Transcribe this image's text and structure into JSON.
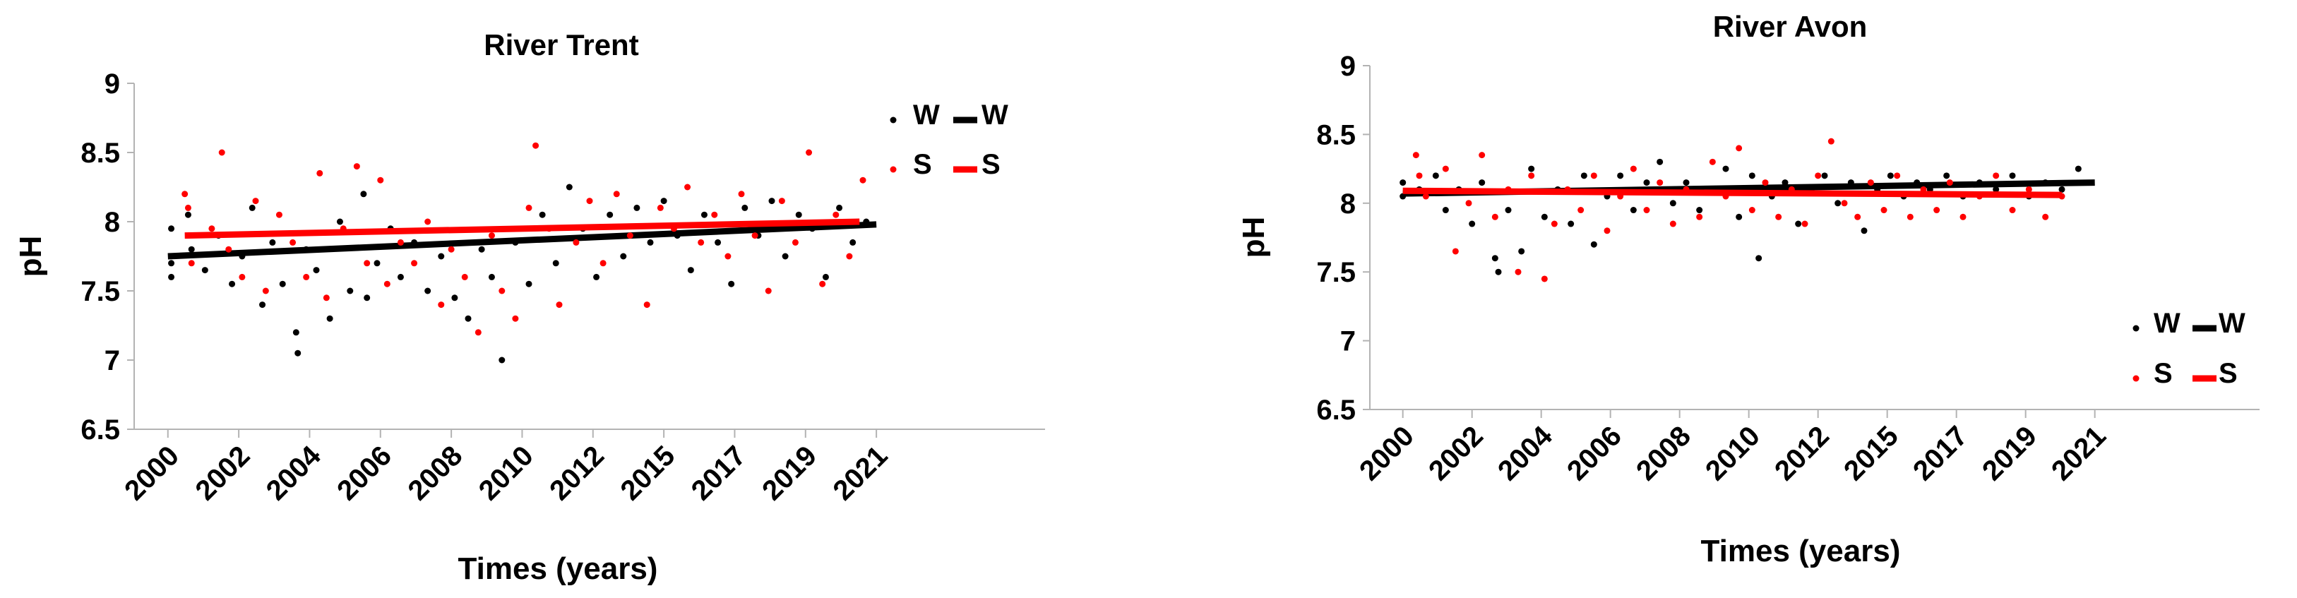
{
  "chart_data": [
    {
      "type": "scatter",
      "title": "River Trent",
      "xlabel": "Times (years)",
      "ylabel": "pH",
      "ylim": [
        6.5,
        9
      ],
      "xlim": [
        1999,
        2026
      ],
      "yticks": [
        "6.5",
        "7",
        "7.5",
        "8",
        "8.5",
        "9"
      ],
      "xticks": [
        "2000",
        "2002",
        "2004",
        "2006",
        "2008",
        "2010",
        "2012",
        "2015",
        "2017",
        "2019",
        "2021"
      ],
      "legend_position": "top-right",
      "series": [
        {
          "name": "W",
          "color": "#000000",
          "kind": "points",
          "points": [
            [
              2000.1,
              7.95
            ],
            [
              2000.1,
              7.7
            ],
            [
              2000.1,
              7.6
            ],
            [
              2000.6,
              8.05
            ],
            [
              2000.7,
              7.8
            ],
            [
              2001.1,
              7.65
            ],
            [
              2001.5,
              7.9
            ],
            [
              2001.9,
              7.55
            ],
            [
              2002.2,
              7.75
            ],
            [
              2002.5,
              8.1
            ],
            [
              2002.8,
              7.4
            ],
            [
              2003.1,
              7.85
            ],
            [
              2003.4,
              7.55
            ],
            [
              2003.8,
              7.2
            ],
            [
              2003.85,
              7.05
            ],
            [
              2004.1,
              7.8
            ],
            [
              2004.4,
              7.65
            ],
            [
              2004.8,
              7.3
            ],
            [
              2005.1,
              8.0
            ],
            [
              2005.4,
              7.5
            ],
            [
              2005.8,
              8.2
            ],
            [
              2005.9,
              7.45
            ],
            [
              2006.2,
              7.7
            ],
            [
              2006.6,
              7.95
            ],
            [
              2006.9,
              7.6
            ],
            [
              2007.3,
              7.85
            ],
            [
              2007.7,
              7.5
            ],
            [
              2008.1,
              7.75
            ],
            [
              2008.5,
              7.45
            ],
            [
              2008.9,
              7.3
            ],
            [
              2009.3,
              7.8
            ],
            [
              2009.6,
              7.6
            ],
            [
              2009.9,
              7.0
            ],
            [
              2010.3,
              7.85
            ],
            [
              2010.7,
              7.55
            ],
            [
              2011.1,
              8.05
            ],
            [
              2011.5,
              7.7
            ],
            [
              2011.9,
              8.25
            ],
            [
              2012.3,
              7.95
            ],
            [
              2012.7,
              7.6
            ],
            [
              2013.1,
              8.05
            ],
            [
              2013.5,
              7.75
            ],
            [
              2013.9,
              8.1
            ],
            [
              2014.3,
              7.85
            ],
            [
              2014.7,
              8.15
            ],
            [
              2015.1,
              7.9
            ],
            [
              2015.5,
              7.65
            ],
            [
              2015.9,
              8.05
            ],
            [
              2016.3,
              7.85
            ],
            [
              2016.7,
              7.55
            ],
            [
              2017.1,
              8.1
            ],
            [
              2017.5,
              7.9
            ],
            [
              2017.9,
              8.15
            ],
            [
              2018.3,
              7.75
            ],
            [
              2018.7,
              8.05
            ],
            [
              2019.1,
              7.95
            ],
            [
              2019.5,
              7.6
            ],
            [
              2019.9,
              8.1
            ],
            [
              2020.3,
              7.85
            ],
            [
              2020.7,
              8.0
            ]
          ]
        },
        {
          "name": "W",
          "color": "#000000",
          "kind": "line",
          "line": [
            [
              2000.0,
              7.75
            ],
            [
              2021.0,
              7.98
            ]
          ]
        },
        {
          "name": "S",
          "color": "#ff0000",
          "kind": "points",
          "points": [
            [
              2000.5,
              8.2
            ],
            [
              2000.6,
              8.1
            ],
            [
              2000.7,
              7.7
            ],
            [
              2001.3,
              7.95
            ],
            [
              2001.6,
              8.5
            ],
            [
              2001.8,
              7.8
            ],
            [
              2002.2,
              7.6
            ],
            [
              2002.6,
              8.15
            ],
            [
              2002.9,
              7.5
            ],
            [
              2003.3,
              8.05
            ],
            [
              2003.7,
              7.85
            ],
            [
              2004.1,
              7.6
            ],
            [
              2004.5,
              8.35
            ],
            [
              2004.7,
              7.45
            ],
            [
              2005.2,
              7.95
            ],
            [
              2005.6,
              8.4
            ],
            [
              2005.9,
              7.7
            ],
            [
              2006.3,
              8.3
            ],
            [
              2006.5,
              7.55
            ],
            [
              2006.9,
              7.85
            ],
            [
              2007.3,
              7.7
            ],
            [
              2007.7,
              8.0
            ],
            [
              2008.1,
              7.4
            ],
            [
              2008.4,
              7.8
            ],
            [
              2008.8,
              7.6
            ],
            [
              2009.2,
              7.2
            ],
            [
              2009.6,
              7.9
            ],
            [
              2009.9,
              7.5
            ],
            [
              2010.3,
              7.3
            ],
            [
              2010.7,
              8.1
            ],
            [
              2010.9,
              8.55
            ],
            [
              2011.3,
              7.95
            ],
            [
              2011.6,
              7.4
            ],
            [
              2012.1,
              7.85
            ],
            [
              2012.5,
              8.15
            ],
            [
              2012.9,
              7.7
            ],
            [
              2013.3,
              8.2
            ],
            [
              2013.7,
              7.9
            ],
            [
              2014.2,
              7.4
            ],
            [
              2014.6,
              8.1
            ],
            [
              2015.0,
              7.95
            ],
            [
              2015.4,
              8.25
            ],
            [
              2015.8,
              7.85
            ],
            [
              2016.2,
              8.05
            ],
            [
              2016.6,
              7.75
            ],
            [
              2017.0,
              8.2
            ],
            [
              2017.4,
              7.9
            ],
            [
              2017.8,
              7.5
            ],
            [
              2018.2,
              8.15
            ],
            [
              2018.6,
              7.85
            ],
            [
              2019.0,
              8.5
            ],
            [
              2019.4,
              7.55
            ],
            [
              2019.8,
              8.05
            ],
            [
              2020.2,
              7.75
            ],
            [
              2020.6,
              8.3
            ]
          ]
        },
        {
          "name": "S",
          "color": "#ff0000",
          "kind": "line",
          "line": [
            [
              2000.5,
              7.9
            ],
            [
              2020.5,
              8.0
            ]
          ]
        }
      ]
    },
    {
      "type": "scatter",
      "title": "River Avon",
      "xlabel": "Times (years)",
      "ylabel": "pH",
      "ylim": [
        6.5,
        9
      ],
      "xlim": [
        1999,
        2026
      ],
      "yticks": [
        "6.5",
        "7",
        "7.5",
        "8",
        "8.5",
        "9"
      ],
      "xticks": [
        "2000",
        "2002",
        "2004",
        "2006",
        "2008",
        "2010",
        "2012",
        "2015",
        "2017",
        "2019",
        "2021"
      ],
      "legend_position": "center-right",
      "series": [
        {
          "name": "W",
          "color": "#000000",
          "kind": "points",
          "points": [
            [
              2000.0,
              8.15
            ],
            [
              2000.0,
              8.05
            ],
            [
              2000.5,
              8.1
            ],
            [
              2001.0,
              8.2
            ],
            [
              2001.3,
              7.95
            ],
            [
              2001.7,
              8.1
            ],
            [
              2002.1,
              7.85
            ],
            [
              2002.4,
              8.15
            ],
            [
              2002.8,
              7.6
            ],
            [
              2002.9,
              7.5
            ],
            [
              2003.2,
              7.95
            ],
            [
              2003.6,
              7.65
            ],
            [
              2003.9,
              8.25
            ],
            [
              2004.3,
              7.9
            ],
            [
              2004.7,
              8.1
            ],
            [
              2005.1,
              7.85
            ],
            [
              2005.5,
              8.2
            ],
            [
              2005.8,
              7.7
            ],
            [
              2006.2,
              8.05
            ],
            [
              2006.6,
              8.2
            ],
            [
              2007.0,
              7.95
            ],
            [
              2007.4,
              8.15
            ],
            [
              2007.8,
              8.3
            ],
            [
              2008.2,
              8.0
            ],
            [
              2008.6,
              8.15
            ],
            [
              2009.0,
              7.95
            ],
            [
              2009.4,
              8.1
            ],
            [
              2009.8,
              8.25
            ],
            [
              2010.2,
              7.9
            ],
            [
              2010.6,
              8.2
            ],
            [
              2010.8,
              7.6
            ],
            [
              2011.2,
              8.05
            ],
            [
              2011.6,
              8.15
            ],
            [
              2012.0,
              7.85
            ],
            [
              2012.4,
              8.1
            ],
            [
              2012.8,
              8.2
            ],
            [
              2013.2,
              8.0
            ],
            [
              2013.6,
              8.15
            ],
            [
              2014.0,
              7.8
            ],
            [
              2014.4,
              8.1
            ],
            [
              2014.8,
              8.2
            ],
            [
              2015.2,
              8.05
            ],
            [
              2015.6,
              8.15
            ],
            [
              2016.0,
              8.1
            ],
            [
              2016.5,
              8.2
            ],
            [
              2017.0,
              8.05
            ],
            [
              2017.5,
              8.15
            ],
            [
              2018.0,
              8.1
            ],
            [
              2018.5,
              8.2
            ],
            [
              2019.0,
              8.05
            ],
            [
              2019.5,
              8.15
            ],
            [
              2020.0,
              8.1
            ],
            [
              2020.5,
              8.25
            ]
          ]
        },
        {
          "name": "W",
          "color": "#000000",
          "kind": "line",
          "line": [
            [
              2000.0,
              8.07
            ],
            [
              2021.0,
              8.15
            ]
          ]
        },
        {
          "name": "S",
          "color": "#ff0000",
          "kind": "points",
          "points": [
            [
              2000.4,
              8.35
            ],
            [
              2000.5,
              8.2
            ],
            [
              2000.7,
              8.05
            ],
            [
              2001.3,
              8.25
            ],
            [
              2001.6,
              7.65
            ],
            [
              2002.0,
              8.0
            ],
            [
              2002.4,
              8.35
            ],
            [
              2002.8,
              7.9
            ],
            [
              2003.2,
              8.1
            ],
            [
              2003.5,
              7.5
            ],
            [
              2003.9,
              8.2
            ],
            [
              2004.3,
              7.45
            ],
            [
              2004.6,
              7.85
            ],
            [
              2005.0,
              8.1
            ],
            [
              2005.4,
              7.95
            ],
            [
              2005.8,
              8.2
            ],
            [
              2006.2,
              7.8
            ],
            [
              2006.6,
              8.05
            ],
            [
              2007.0,
              8.25
            ],
            [
              2007.4,
              7.95
            ],
            [
              2007.8,
              8.15
            ],
            [
              2008.2,
              7.85
            ],
            [
              2008.6,
              8.1
            ],
            [
              2009.0,
              7.9
            ],
            [
              2009.4,
              8.3
            ],
            [
              2009.8,
              8.05
            ],
            [
              2010.2,
              8.4
            ],
            [
              2010.6,
              7.95
            ],
            [
              2011.0,
              8.15
            ],
            [
              2011.4,
              7.9
            ],
            [
              2011.8,
              8.1
            ],
            [
              2012.2,
              7.85
            ],
            [
              2012.6,
              8.2
            ],
            [
              2013.0,
              8.45
            ],
            [
              2013.4,
              8.0
            ],
            [
              2013.8,
              7.9
            ],
            [
              2014.2,
              8.15
            ],
            [
              2014.6,
              7.95
            ],
            [
              2015.0,
              8.2
            ],
            [
              2015.4,
              7.9
            ],
            [
              2015.8,
              8.1
            ],
            [
              2016.2,
              7.95
            ],
            [
              2016.6,
              8.15
            ],
            [
              2017.0,
              7.9
            ],
            [
              2017.5,
              8.05
            ],
            [
              2018.0,
              8.2
            ],
            [
              2018.5,
              7.95
            ],
            [
              2019.0,
              8.1
            ],
            [
              2019.5,
              7.9
            ],
            [
              2020.0,
              8.05
            ]
          ]
        },
        {
          "name": "S",
          "color": "#ff0000",
          "kind": "line",
          "line": [
            [
              2000.0,
              8.09
            ],
            [
              2020.0,
              8.06
            ]
          ]
        }
      ]
    }
  ]
}
